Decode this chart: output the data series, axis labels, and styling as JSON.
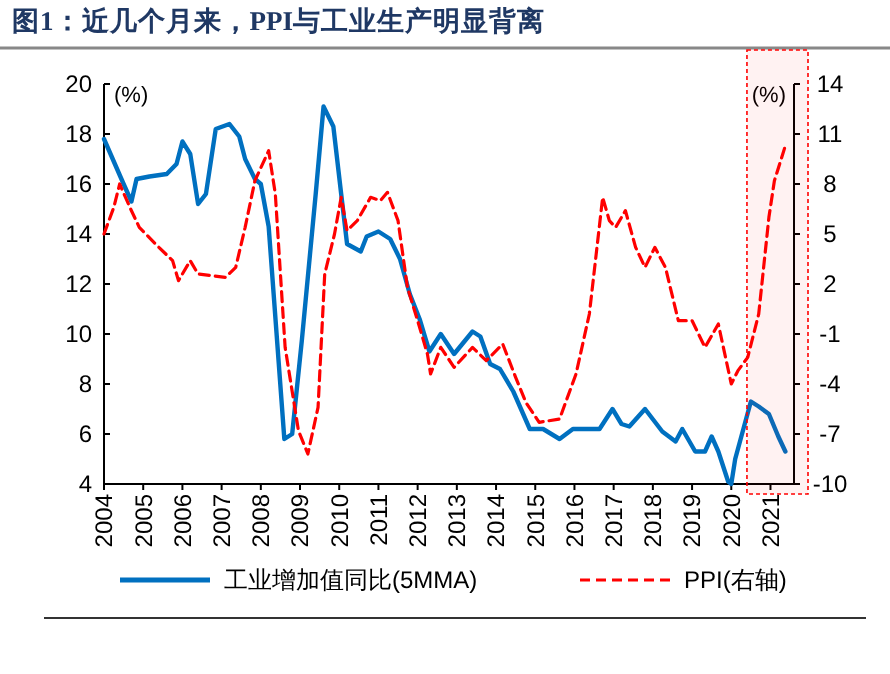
{
  "chart_data": {
    "type": "line",
    "title": "图1：近几个月来，PPI与工业生产明显背离",
    "ylabel": "(%)",
    "y2label": "(%)",
    "xlim": [
      2004,
      2021.6
    ],
    "xticks": [
      2004,
      2005,
      2006,
      2007,
      2008,
      2009,
      2010,
      2011,
      2012,
      2013,
      2014,
      2015,
      2016,
      2017,
      2018,
      2019,
      2020,
      2021
    ],
    "ylim": [
      4,
      20
    ],
    "yticks": [
      4,
      6,
      8,
      10,
      12,
      14,
      16,
      18,
      20
    ],
    "y2lim": [
      -10,
      14
    ],
    "y2ticks": [
      -10,
      -7,
      -4,
      -1,
      2,
      5,
      8,
      11,
      14
    ],
    "legend": "bottom",
    "grid": false,
    "bands": [
      {
        "axis": "x",
        "from": 2020.4,
        "to": 2021.6,
        "color": "#ff0000"
      }
    ],
    "series": [
      {
        "name": "工业增加值同比(5MMA)",
        "color": "#0070c0",
        "line_style": "solid",
        "x": [
          2004.0,
          2004.5,
          2004.7,
          2004.83,
          2005.16,
          2005.6,
          2005.85,
          2006.0,
          2006.2,
          2006.4,
          2006.6,
          2006.85,
          2007.2,
          2007.45,
          2007.6,
          2007.85,
          2008.0,
          2008.2,
          2008.6,
          2008.8,
          2009.05,
          2009.4,
          2009.6,
          2009.85,
          2010.05,
          2010.2,
          2010.55,
          2010.7,
          2011.0,
          2011.3,
          2011.55,
          2011.8,
          2012.05,
          2012.3,
          2012.59,
          2012.93,
          2013.4,
          2013.6,
          2013.85,
          2014.1,
          2014.44,
          2014.86,
          2015.2,
          2015.62,
          2015.96,
          2016.64,
          2016.97,
          2017.2,
          2017.4,
          2017.8,
          2018.24,
          2018.58,
          2018.75,
          2019.08,
          2019.33,
          2019.5,
          2019.67,
          2019.92,
          2020.0,
          2020.1,
          2020.5,
          2020.7,
          2020.96,
          2021.2,
          2021.38
        ],
        "values": [
          17.8,
          16.0,
          15.3,
          16.2,
          16.3,
          16.4,
          16.8,
          17.7,
          17.2,
          15.2,
          15.6,
          18.2,
          18.4,
          17.9,
          17.0,
          16.2,
          16.0,
          14.3,
          5.8,
          6.0,
          9.8,
          15.6,
          19.1,
          18.3,
          15.6,
          13.6,
          13.3,
          13.9,
          14.1,
          13.8,
          13.0,
          11.6,
          10.6,
          9.3,
          10.0,
          9.2,
          10.1,
          9.9,
          8.8,
          8.6,
          7.7,
          6.2,
          6.2,
          5.8,
          6.2,
          6.2,
          7.0,
          6.4,
          6.3,
          7.0,
          6.1,
          5.7,
          6.2,
          5.3,
          5.3,
          5.9,
          5.3,
          4.1,
          4.0,
          5.0,
          7.3,
          7.1,
          6.8,
          5.9,
          5.3
        ]
      },
      {
        "name": "PPI(右轴)",
        "color": "#ff0000",
        "axis": "y2",
        "line_style": "dashed",
        "x": [
          2004.0,
          2004.25,
          2004.4,
          2004.66,
          2004.9,
          2005.4,
          2005.75,
          2005.9,
          2006.2,
          2006.4,
          2007.1,
          2007.36,
          2007.6,
          2007.85,
          2008.2,
          2008.37,
          2008.62,
          2008.96,
          2009.2,
          2009.46,
          2009.63,
          2009.88,
          2010.05,
          2010.2,
          2010.46,
          2010.8,
          2011.05,
          2011.23,
          2011.5,
          2011.74,
          2012.0,
          2012.25,
          2012.33,
          2012.59,
          2012.93,
          2013.4,
          2013.75,
          2014.17,
          2014.5,
          2014.76,
          2015.1,
          2015.62,
          2016.04,
          2016.38,
          2016.72,
          2016.89,
          2017.05,
          2017.3,
          2017.56,
          2017.8,
          2018.05,
          2018.32,
          2018.65,
          2019.0,
          2019.33,
          2019.67,
          2020.0,
          2020.17,
          2020.42,
          2020.7,
          2020.96,
          2021.1,
          2021.38
        ],
        "values": [
          5.0,
          6.6,
          8.0,
          6.6,
          5.4,
          4.2,
          3.4,
          2.2,
          3.4,
          2.6,
          2.4,
          3.0,
          5.4,
          8.2,
          10.0,
          7.4,
          -1.8,
          -6.8,
          -8.2,
          -5.4,
          2.6,
          5.0,
          7.2,
          5.2,
          5.8,
          7.2,
          7.0,
          7.5,
          5.8,
          1.8,
          -0.2,
          -2.2,
          -3.4,
          -1.8,
          -3.0,
          -1.8,
          -2.6,
          -1.6,
          -3.6,
          -5.1,
          -6.3,
          -6.1,
          -3.4,
          0.2,
          7.2,
          5.8,
          5.4,
          6.4,
          4.2,
          3.0,
          4.2,
          3.0,
          -0.2,
          -0.2,
          -1.8,
          -0.4,
          -4.0,
          -3.2,
          -2.4,
          0.2,
          6.0,
          8.2,
          10.3
        ]
      }
    ]
  }
}
